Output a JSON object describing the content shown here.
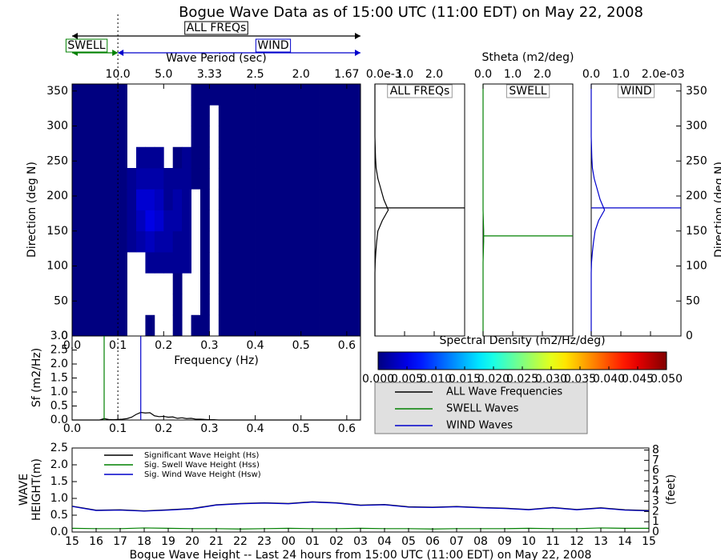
{
  "chart_data": [
    {
      "type": "heatmap",
      "title": "Bogue Wave Data as of 15:00 UTC (11:00 EDT) on May 22, 2008",
      "xlabel": "Frequency (Hz)",
      "ylabel": "Direction (deg N)",
      "xlim": [
        0,
        0.63
      ],
      "ylim": [
        0,
        360
      ],
      "xticks": [
        {
          "value": 0,
          "label": "0.0"
        },
        0.1,
        0.2,
        0.3,
        0.4,
        0.5,
        0.6
      ],
      "yticks": [
        0,
        50,
        100,
        150,
        200,
        250,
        300,
        350
      ],
      "top_axis": {
        "label": "Wave Period (sec)",
        "ticks": [
          {
            "value": 0.1,
            "label": "10.0"
          },
          {
            "value": 0.2,
            "label": "5.0"
          },
          {
            "value": 0.3,
            "label": "3.33"
          },
          {
            "value": 0.4,
            "label": "2.5"
          },
          {
            "value": 0.5,
            "label": "2.0"
          },
          {
            "value": 0.6,
            "label": "1.67"
          }
        ]
      },
      "separator": 0.1,
      "ranges": [
        {
          "label": "ALL FREQs",
          "from": 0,
          "to": 0.63,
          "color": "#000000"
        },
        {
          "label": "SWELL",
          "from": 0,
          "to": 0.1,
          "color": "#008000"
        },
        {
          "label": "WIND",
          "from": 0.1,
          "to": 0.63,
          "color": "#0000cc"
        }
      ],
      "x_edges": [
        0,
        0.02,
        0.04,
        0.06,
        0.08,
        0.1,
        0.12,
        0.14,
        0.16,
        0.18,
        0.2,
        0.22,
        0.24,
        0.26,
        0.28,
        0.3,
        0.32,
        0.34,
        0.36,
        0.38,
        0.4,
        0.42,
        0.44,
        0.46,
        0.48,
        0.5,
        0.52,
        0.54,
        0.56,
        0.58,
        0.6,
        0.62,
        0.63
      ],
      "y_edges": [
        0,
        30,
        60,
        90,
        120,
        150,
        180,
        210,
        240,
        270,
        300,
        330,
        360
      ],
      "values": [
        [
          0,
          0,
          0,
          0,
          0,
          0,
          null,
          null,
          0,
          null,
          null,
          0,
          null,
          0,
          0,
          null,
          0,
          0,
          0,
          0,
          0,
          0,
          0,
          0,
          0,
          0,
          0,
          0,
          0,
          0,
          0,
          0
        ],
        [
          0,
          0,
          0,
          0,
          0,
          0,
          null,
          null,
          null,
          null,
          null,
          0,
          null,
          null,
          0,
          null,
          0,
          0,
          0,
          0,
          0,
          0,
          0,
          0,
          0,
          0,
          0,
          0,
          0,
          0,
          0,
          0
        ],
        [
          0,
          0,
          0,
          0,
          0,
          0,
          null,
          null,
          null,
          null,
          null,
          0,
          null,
          null,
          0,
          null,
          0,
          0,
          0,
          0,
          0,
          0,
          0,
          0,
          0,
          0,
          0,
          0,
          0,
          0,
          0,
          0
        ],
        [
          0,
          0,
          0,
          0,
          0,
          0,
          null,
          null,
          0.001,
          0.001,
          0.001,
          0.001,
          0.001,
          null,
          0,
          null,
          0,
          0,
          0,
          0,
          0,
          0,
          0,
          0,
          0,
          0,
          0,
          0,
          0,
          0,
          0,
          0
        ],
        [
          0,
          0,
          0,
          0,
          0,
          0,
          0.001,
          0.002,
          0.003,
          0.002,
          0.002,
          0.001,
          0.001,
          null,
          0,
          null,
          0,
          0,
          0,
          0,
          0,
          0,
          0,
          0,
          0,
          0,
          0,
          0,
          0,
          0,
          0,
          0
        ],
        [
          0,
          0,
          0,
          0,
          0,
          0,
          0.001,
          0.003,
          0.005,
          0.004,
          0.002,
          0.002,
          0.001,
          null,
          0,
          null,
          0,
          0,
          0,
          0,
          0,
          0,
          0,
          0,
          0,
          0,
          0,
          0,
          0,
          0,
          0,
          0
        ],
        [
          0,
          0,
          0,
          0,
          0,
          0,
          0.001,
          0.004,
          0.004,
          0.003,
          0.001,
          0.002,
          0.001,
          null,
          0,
          null,
          0,
          0,
          0,
          0,
          0,
          0,
          0,
          0,
          0,
          0,
          0,
          0,
          0,
          0,
          0,
          0
        ],
        [
          0,
          0,
          0,
          0,
          0,
          0,
          0.001,
          0.002,
          0.002,
          0.002,
          0.001,
          0.001,
          0.001,
          0,
          0,
          null,
          0,
          0,
          0,
          0,
          0,
          0,
          0,
          0,
          0,
          0,
          0,
          0,
          0,
          0,
          0,
          0
        ],
        [
          0,
          0,
          0,
          0,
          0,
          0,
          null,
          0.001,
          0.001,
          0.001,
          null,
          0,
          0.001,
          0,
          0,
          null,
          0,
          0,
          0,
          0,
          0,
          0,
          0,
          0,
          0,
          0,
          0,
          0,
          0,
          0,
          0,
          0
        ],
        [
          0,
          0,
          0,
          0,
          0,
          0,
          null,
          null,
          null,
          null,
          null,
          null,
          null,
          0,
          0,
          null,
          0,
          0,
          0,
          0,
          0,
          0,
          0,
          0,
          0,
          0,
          0,
          0,
          0,
          0,
          0,
          0
        ],
        [
          0,
          0,
          0,
          0,
          0,
          0,
          null,
          null,
          null,
          null,
          null,
          null,
          null,
          0,
          0,
          null,
          0,
          0,
          0,
          0,
          0,
          0,
          0,
          0,
          0,
          0,
          0,
          0,
          0,
          0,
          0,
          0
        ],
        [
          0,
          0,
          0,
          0,
          0,
          0,
          null,
          null,
          null,
          null,
          null,
          null,
          null,
          0,
          0,
          0,
          0,
          0,
          0,
          0,
          0,
          0,
          0,
          0,
          0,
          0,
          0,
          0,
          0,
          0,
          0,
          0
        ]
      ],
      "colorbar": {
        "label": "Spectral Density (m2/Hz/deg)",
        "lim": [
          0,
          0.05
        ],
        "colormap": "jet",
        "ticks": [
          {
            "value": 0,
            "label": "0.000"
          },
          {
            "value": 0.005,
            "label": "0.005"
          },
          {
            "value": 0.01,
            "label": "0.010"
          },
          {
            "value": 0.015,
            "label": "0.015"
          },
          {
            "value": 0.02,
            "label": "0.020"
          },
          {
            "value": 0.025,
            "label": "0.025"
          },
          {
            "value": 0.03,
            "label": "0.030"
          },
          {
            "value": 0.035,
            "label": "0.035"
          },
          {
            "value": 0.04,
            "label": "0.040"
          },
          {
            "value": 0.045,
            "label": "0.045"
          },
          {
            "value": 0.05,
            "label": "0.050"
          }
        ]
      }
    },
    {
      "type": "direction-line",
      "title": "ALL FREQs",
      "color": "#000000",
      "y": [
        0,
        15,
        30,
        45,
        60,
        75,
        90,
        105,
        120,
        135,
        150,
        165,
        180,
        195,
        210,
        225,
        240,
        255,
        270,
        285,
        300,
        315,
        330,
        345,
        360
      ],
      "values": [
        0,
        0,
        0,
        0,
        0,
        0,
        0,
        1e-05,
        3e-05,
        6e-05,
        0.0001,
        0.00025,
        0.00045,
        0.0003,
        0.0002,
        0.0001,
        4e-05,
        2e-05,
        1e-05,
        0,
        0,
        0,
        0,
        0,
        0
      ],
      "mean_direction": 183,
      "xlim": [
        0,
        0.003
      ],
      "ylim": [
        0,
        360
      ],
      "xticks": [
        {
          "value": 0,
          "label": "0.0"
        },
        {
          "value": 0.001,
          "label": "1.0"
        },
        {
          "value": 0.002,
          "label": "2.0"
        }
      ],
      "offset_label": "e-3"
    },
    {
      "type": "direction-line",
      "title": "SWELL",
      "color": "#008000",
      "xlabel": "Stheta (m2/deg)",
      "y": [
        0,
        15,
        30,
        45,
        60,
        75,
        90,
        105,
        120,
        135,
        150,
        165,
        180,
        195,
        210,
        225,
        240,
        255,
        270,
        285,
        300,
        315,
        330,
        345,
        360
      ],
      "values": [
        0,
        0,
        0,
        0,
        0,
        0,
        0,
        0,
        0.01,
        0.02,
        0.02,
        0.01,
        0,
        0,
        0,
        0,
        0,
        0,
        0,
        0,
        0,
        0,
        0,
        0,
        0
      ],
      "mean_direction": 143,
      "xlim": [
        0,
        3
      ],
      "ylim": [
        0,
        360
      ],
      "xticks": [
        {
          "value": 0,
          "label": "0.0"
        },
        {
          "value": 1,
          "label": "1.0"
        },
        {
          "value": 2,
          "label": "2.0"
        }
      ]
    },
    {
      "type": "direction-line",
      "title": "WIND",
      "color": "#0000cc",
      "ylabel": "Direction (deg N)",
      "y": [
        0,
        15,
        30,
        45,
        60,
        75,
        90,
        105,
        120,
        135,
        150,
        165,
        180,
        195,
        210,
        225,
        240,
        255,
        270,
        285,
        300,
        315,
        330,
        345,
        360
      ],
      "values": [
        0,
        0,
        0,
        0,
        0,
        0,
        0,
        1e-05,
        4e-05,
        8e-05,
        0.00013,
        0.00025,
        0.00045,
        0.0003,
        0.0002,
        0.0001,
        4e-05,
        2e-05,
        1e-05,
        0,
        0,
        0,
        0,
        0,
        0
      ],
      "mean_direction": 183,
      "xlim": [
        0,
        0.003
      ],
      "ylim": [
        0,
        360
      ],
      "xticks": [
        {
          "value": 0,
          "label": "0.0"
        },
        {
          "value": 0.001,
          "label": "1.0"
        },
        {
          "value": 0.002,
          "label": "2.0"
        }
      ],
      "offset_label": "e-03",
      "yticks": [
        0,
        50,
        100,
        150,
        200,
        250,
        300,
        350
      ]
    },
    {
      "type": "spectrum",
      "ylabel": "Sf (m2/Hz)",
      "xlim": [
        0,
        0.63
      ],
      "ylim": [
        0,
        3
      ],
      "xticks": [
        {
          "value": 0,
          "label": "0.0"
        },
        0.1,
        0.2,
        0.3,
        0.4,
        0.5,
        0.6
      ],
      "yticks": [
        {
          "value": 0,
          "label": "0.0"
        },
        0.5,
        {
          "value": 1,
          "label": "1.0"
        },
        1.5,
        {
          "value": 2,
          "label": "2.0"
        },
        2.5,
        {
          "value": 3,
          "label": "3.0"
        }
      ],
      "x": [
        0,
        0.01,
        0.02,
        0.03,
        0.04,
        0.05,
        0.06,
        0.07,
        0.08,
        0.09,
        0.1,
        0.11,
        0.12,
        0.13,
        0.14,
        0.15,
        0.16,
        0.17,
        0.18,
        0.19,
        0.2,
        0.21,
        0.22,
        0.23,
        0.24,
        0.25,
        0.26,
        0.27,
        0.28,
        0.29,
        0.3,
        0.31,
        0.32,
        0.33,
        0.34,
        0.35,
        0.36,
        0.37,
        0.38,
        0.39,
        0.4,
        0.41,
        0.42,
        0.43,
        0.44,
        0.45,
        0.46,
        0.47,
        0.48,
        0.49,
        0.5,
        0.51,
        0.52,
        0.53,
        0.54,
        0.55,
        0.56,
        0.57,
        0.58,
        0.59,
        0.6,
        0.61,
        0.62,
        0.63
      ],
      "series": [
        {
          "name": "ALL Wave Frequencies",
          "color": "#000000",
          "values": [
            0,
            0,
            0,
            0,
            0,
            0,
            0,
            0.05,
            0.02,
            0.01,
            0.02,
            0.03,
            0.05,
            0.1,
            0.2,
            0.27,
            0.25,
            0.26,
            0.15,
            0.12,
            0.13,
            0.1,
            0.11,
            0.06,
            0.08,
            0.05,
            0.06,
            0.03,
            0.03,
            0.02,
            0.01,
            0.01,
            0,
            0,
            0,
            0,
            0,
            0,
            0,
            0,
            0,
            0,
            0,
            0,
            0,
            0,
            0,
            0,
            0,
            0,
            0,
            0,
            0,
            0,
            0,
            0,
            0,
            0,
            0,
            0,
            0,
            0,
            0,
            0
          ]
        }
      ],
      "markers": [
        {
          "name": "SWELL Waves",
          "color": "#008000",
          "x": 0.07
        },
        {
          "name": "WIND Waves",
          "color": "#0000cc",
          "x": 0.15
        }
      ]
    },
    {
      "type": "line",
      "xlabel": "Bogue Wave Height -- Last 24 hours from 15:00 UTC (11:00 EDT) on May 22, 2008",
      "ylabel": [
        "WAVE",
        "HEIGHT(m)"
      ],
      "y2label": "(feet)",
      "categories": [
        "15",
        "16",
        "17",
        "18",
        "19",
        "20",
        "21",
        "22",
        "23",
        "00",
        "01",
        "02",
        "03",
        "04",
        "05",
        "06",
        "07",
        "08",
        "09",
        "10",
        "11",
        "12",
        "13",
        "14",
        "15"
      ],
      "ylim": [
        0,
        2.5
      ],
      "yticks": [
        {
          "value": 0,
          "label": "0.0"
        },
        0.5,
        {
          "value": 1,
          "label": "1.0"
        },
        1.5,
        {
          "value": 2,
          "label": "2.0"
        },
        2.5
      ],
      "y2lim": [
        0,
        8.2
      ],
      "y2ticks": [
        0,
        1,
        2,
        3,
        4,
        5,
        6,
        7,
        8
      ],
      "series": [
        {
          "name": "Significant Wave Height (Hs)",
          "color": "#000000",
          "values": [
            0.77,
            0.65,
            0.66,
            0.63,
            0.66,
            0.7,
            0.81,
            0.85,
            0.87,
            0.85,
            0.9,
            0.87,
            0.8,
            0.82,
            0.75,
            0.74,
            0.76,
            0.73,
            0.71,
            0.67,
            0.73,
            0.67,
            0.72,
            0.66,
            0.64
          ]
        },
        {
          "name": "Sig. Swell Wave Height (Hss)",
          "color": "#008000",
          "values": [
            0.11,
            0.1,
            0.1,
            0.12,
            0.11,
            0.1,
            0.1,
            0.09,
            0.1,
            0.11,
            0.1,
            0.1,
            0.11,
            0.1,
            0.1,
            0.09,
            0.1,
            0.1,
            0.1,
            0.11,
            0.1,
            0.1,
            0.12,
            0.11,
            0.11
          ]
        },
        {
          "name": "Sig. Wind Wave Height (Hsw)",
          "color": "#0000cc",
          "values": [
            0.76,
            0.64,
            0.65,
            0.62,
            0.65,
            0.69,
            0.8,
            0.84,
            0.86,
            0.84,
            0.89,
            0.86,
            0.79,
            0.81,
            0.74,
            0.73,
            0.75,
            0.72,
            0.7,
            0.66,
            0.72,
            0.66,
            0.71,
            0.65,
            0.63
          ]
        }
      ]
    }
  ]
}
